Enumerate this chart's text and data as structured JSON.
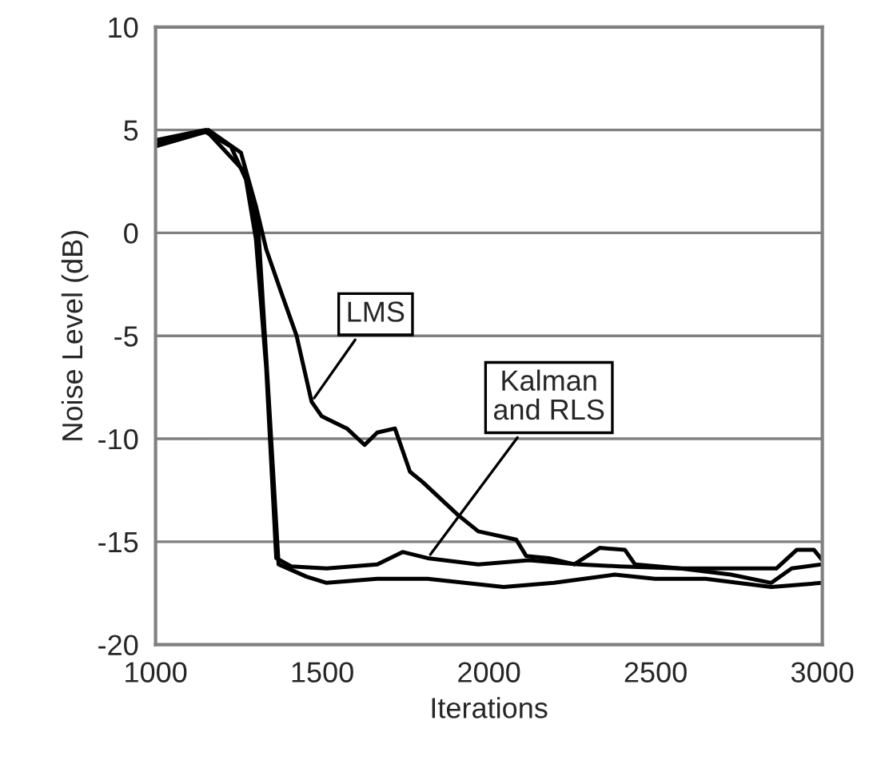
{
  "chart_data": {
    "type": "line",
    "xlabel": "Iterations",
    "ylabel": "Noise Level (dB)",
    "xlim": [
      1000,
      3000
    ],
    "xticks": [
      1000,
      1500,
      2000,
      2500,
      3000
    ],
    "ylim": [
      -20,
      10
    ],
    "yticks": [
      -20,
      -15,
      -10,
      -5,
      0,
      5,
      10
    ],
    "grid": "y",
    "marker": "none",
    "line_style": "solid",
    "series": [
      {
        "color": "#000000",
        "x": [
          1000,
          1158,
          1256,
          1301,
          1332,
          1377,
          1423,
          1468,
          1498,
          1574,
          1627,
          1665,
          1718,
          1763,
          1801,
          1907,
          1968,
          2082,
          2112,
          2180,
          2256,
          2332,
          2408,
          2438,
          2574,
          2726,
          2862,
          2923,
          2975,
          3000
        ],
        "values": [
          4.3,
          5.0,
          3.9,
          1.3,
          -0.8,
          -2.9,
          -5.0,
          -8.2,
          -8.9,
          -9.5,
          -10.3,
          -9.7,
          -9.5,
          -11.6,
          -12.1,
          -13.7,
          -14.5,
          -14.9,
          -15.7,
          -15.8,
          -16.1,
          -15.3,
          -15.4,
          -16.1,
          -16.3,
          -16.3,
          -16.3,
          -15.4,
          -15.4,
          -15.9
        ]
      },
      {
        "color": "#000000",
        "x": [
          1000,
          1150,
          1226,
          1271,
          1301,
          1332,
          1362,
          1407,
          1513,
          1665,
          1741,
          1816,
          1968,
          2120,
          2271,
          2392,
          2574,
          2726,
          2847,
          2908,
          3000
        ],
        "values": [
          4.2,
          4.9,
          4.2,
          2.6,
          -0.3,
          -6.6,
          -15.8,
          -16.2,
          -16.3,
          -16.1,
          -15.5,
          -15.8,
          -16.1,
          -15.9,
          -16.1,
          -16.2,
          -16.3,
          -16.6,
          -17.0,
          -16.3,
          -16.1
        ]
      },
      {
        "color": "#000000",
        "x": [
          1000,
          1150,
          1271,
          1309,
          1339,
          1369,
          1453,
          1513,
          1665,
          1816,
          2044,
          2195,
          2377,
          2498,
          2650,
          2847,
          3000
        ],
        "values": [
          4.5,
          5.0,
          2.9,
          0.0,
          -7.9,
          -16.1,
          -16.7,
          -17.0,
          -16.8,
          -16.8,
          -17.2,
          -17.0,
          -16.6,
          -16.8,
          -16.8,
          -17.2,
          -17.0
        ]
      }
    ],
    "annotations": [
      {
        "text": "LMS",
        "x": 1468,
        "y": -8.2
      },
      {
        "text": "Kalman\nand RLS",
        "x": 1816,
        "y": -15.8
      }
    ]
  }
}
